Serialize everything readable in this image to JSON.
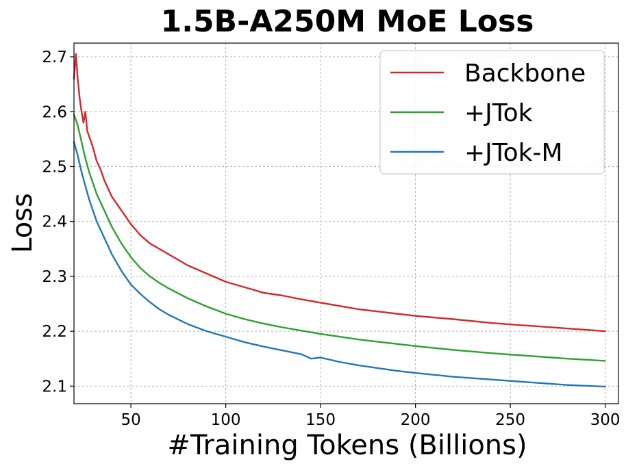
{
  "chart_data": {
    "type": "line",
    "title": "1.5B-A250M MoE Loss",
    "xlabel": "#Training Tokens (Billions)",
    "ylabel": "Loss",
    "xlim": [
      20,
      307
    ],
    "ylim": [
      2.068,
      2.725
    ],
    "xticks": [
      50,
      100,
      150,
      200,
      250,
      300
    ],
    "yticks": [
      2.1,
      2.2,
      2.3,
      2.4,
      2.5,
      2.6,
      2.7
    ],
    "grid": true,
    "legend_position": "top-right",
    "series": [
      {
        "name": "Backbone",
        "color": "#d62728",
        "x": [
          20,
          21,
          22,
          23,
          24,
          25,
          26,
          27,
          28,
          30,
          32,
          34,
          36,
          38,
          40,
          45,
          50,
          55,
          60,
          65,
          70,
          80,
          90,
          100,
          110,
          120,
          130,
          140,
          150,
          160,
          170,
          180,
          190,
          200,
          220,
          240,
          260,
          280,
          300
        ],
        "y": [
          2.66,
          2.705,
          2.66,
          2.625,
          2.6,
          2.58,
          2.6,
          2.565,
          2.555,
          2.535,
          2.51,
          2.495,
          2.475,
          2.46,
          2.445,
          2.42,
          2.395,
          2.375,
          2.36,
          2.35,
          2.34,
          2.32,
          2.305,
          2.29,
          2.28,
          2.27,
          2.265,
          2.258,
          2.252,
          2.246,
          2.24,
          2.236,
          2.232,
          2.228,
          2.222,
          2.215,
          2.21,
          2.205,
          2.2
        ]
      },
      {
        "name": "+JTok",
        "color": "#2ca02c",
        "x": [
          20,
          22,
          24,
          26,
          28,
          30,
          32,
          34,
          36,
          38,
          40,
          45,
          50,
          55,
          60,
          65,
          70,
          80,
          90,
          100,
          110,
          120,
          130,
          140,
          150,
          160,
          170,
          180,
          190,
          200,
          220,
          240,
          260,
          280,
          300
        ],
        "y": [
          2.595,
          2.575,
          2.545,
          2.515,
          2.49,
          2.47,
          2.45,
          2.435,
          2.42,
          2.405,
          2.39,
          2.36,
          2.335,
          2.315,
          2.3,
          2.288,
          2.278,
          2.26,
          2.245,
          2.232,
          2.222,
          2.214,
          2.207,
          2.201,
          2.195,
          2.19,
          2.185,
          2.181,
          2.177,
          2.173,
          2.166,
          2.16,
          2.155,
          2.15,
          2.146
        ]
      },
      {
        "name": "+JTok-M",
        "color": "#1f77b4",
        "x": [
          20,
          22,
          24,
          26,
          28,
          30,
          32,
          34,
          36,
          38,
          40,
          45,
          50,
          55,
          60,
          65,
          70,
          80,
          90,
          100,
          110,
          120,
          130,
          140,
          145,
          150,
          160,
          170,
          180,
          190,
          200,
          220,
          240,
          260,
          280,
          300
        ],
        "y": [
          2.545,
          2.52,
          2.49,
          2.465,
          2.44,
          2.42,
          2.4,
          2.385,
          2.37,
          2.355,
          2.34,
          2.31,
          2.285,
          2.268,
          2.253,
          2.24,
          2.23,
          2.213,
          2.2,
          2.19,
          2.18,
          2.172,
          2.165,
          2.158,
          2.15,
          2.152,
          2.144,
          2.138,
          2.133,
          2.128,
          2.124,
          2.117,
          2.112,
          2.107,
          2.102,
          2.099
        ]
      }
    ]
  }
}
